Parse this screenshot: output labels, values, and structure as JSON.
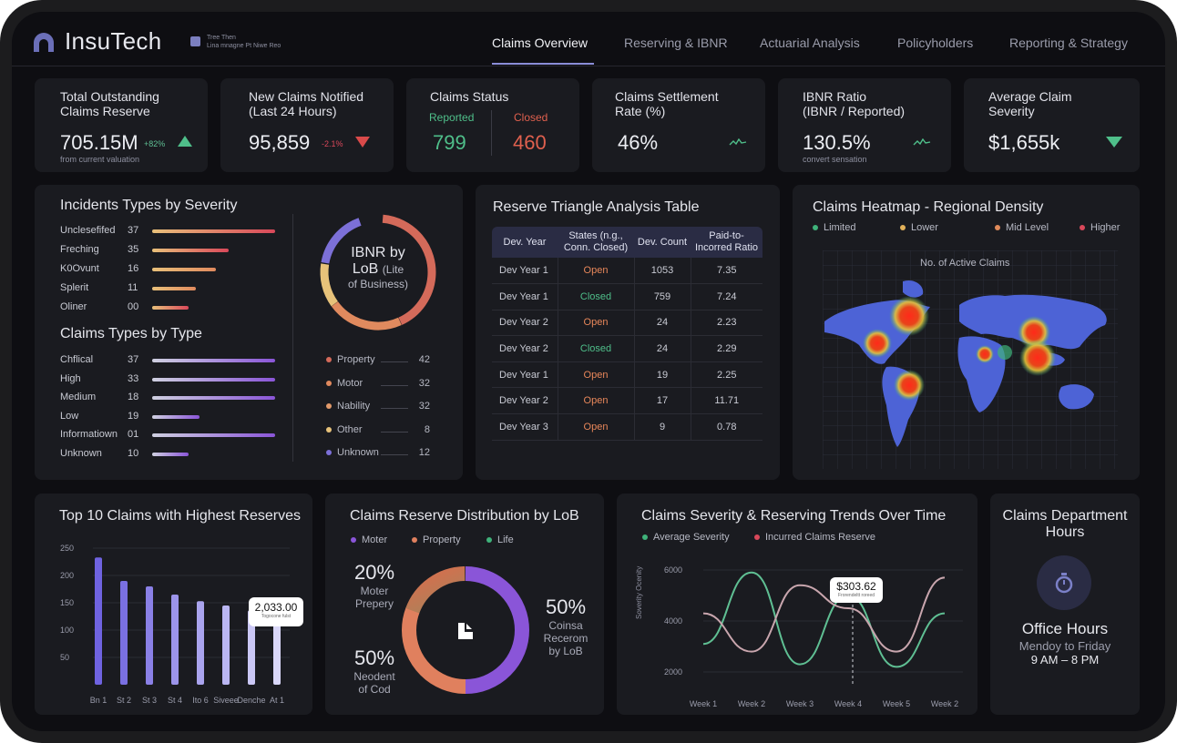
{
  "app": {
    "brand": "InsuTech",
    "mini_line1": "Tree Then",
    "mini_line2": "Lina mnagne Pt Niwe Reo"
  },
  "nav": [
    "Claims Overview",
    "Reserving & IBNR",
    "Actuarial Analysis",
    "Policyholders",
    "Reporting & Strategy"
  ],
  "kpis": {
    "outstanding": {
      "title_1": "Total Outstanding",
      "title_2": "Claims Reserve",
      "value": "705.15M",
      "delta": "+82%",
      "sub": "from current valuation"
    },
    "new_claims": {
      "title_1": "New Claims Notified",
      "title_2": "(Last 24 Hours)",
      "value": "95,859",
      "delta": "-2.1%"
    },
    "status": {
      "title": "Claims Status",
      "reported_label": "Reported",
      "reported_value": "799",
      "closed_label": "Closed",
      "closed_value": "460"
    },
    "settlement": {
      "title_1": "Claims Settlement",
      "title_2": "Rate (%)",
      "value": "46%"
    },
    "ibnr": {
      "title_1": "IBNR Ratio",
      "title_2": "(IBNR / Reported)",
      "value": "130.5%",
      "sub": "convert sensation"
    },
    "severity": {
      "title_1": "Average Claim",
      "title_2": "Severity",
      "value": "$1,655k"
    }
  },
  "incidents": {
    "title": "Incidents Types by Severity",
    "rows": [
      {
        "label": "Unclesefifed",
        "value": "37"
      },
      {
        "label": "Freching",
        "value": "35"
      },
      {
        "label": "K0Ovunt",
        "value": "16"
      },
      {
        "label": "Splerit",
        "value": "11"
      },
      {
        "label": "Oliner",
        "value": "00"
      }
    ]
  },
  "claim_types": {
    "title": "Claims Types by Type",
    "rows": [
      {
        "label": "Chflical",
        "value": "37"
      },
      {
        "label": "High",
        "value": "33"
      },
      {
        "label": "Medium",
        "value": "18"
      },
      {
        "label": "Low",
        "value": "19"
      },
      {
        "label": "Informatiown",
        "value": "01"
      },
      {
        "label": "Unknown",
        "value": "10"
      }
    ]
  },
  "ibnr_donut": {
    "line1": "IBNR by",
    "line2": "LoB",
    "line2b": "(Lite",
    "line3": "of Business)",
    "legend": [
      {
        "label": "Property",
        "value": "42",
        "color": "#d46a5a"
      },
      {
        "label": "Motor",
        "value": "32",
        "color": "#e0895e"
      },
      {
        "label": "Nability",
        "value": "32",
        "color": "#e29a6a"
      },
      {
        "label": "Other",
        "value": "8",
        "color": "#e7c27a"
      },
      {
        "label": "Unknown",
        "value": "12",
        "color": "#7c70d8"
      }
    ]
  },
  "triangle": {
    "title": "Reserve Triangle Analysis Table",
    "headers": [
      "Dev. Year",
      "States (n.g., Conn. Closed)",
      "Dev. Count",
      "Paid-to-Incorred Ratio"
    ],
    "rows": [
      [
        "Dev Year 1",
        "Open",
        "1053",
        "7.35"
      ],
      [
        "Dev Year 1",
        "Closed",
        "759",
        "7.24"
      ],
      [
        "Dev Year 2",
        "Open",
        "24",
        "2.23"
      ],
      [
        "Dev Year 2",
        "Closed",
        "24",
        "2.29"
      ],
      [
        "Dev Year 1",
        "Open",
        "19",
        "2.25"
      ],
      [
        "Dev Year 2",
        "Open",
        "17",
        "11.71"
      ],
      [
        "Dev Year 3",
        "Open",
        "9",
        "0.78"
      ]
    ]
  },
  "heatmap": {
    "title": "Claims Heatmap - Regional Density",
    "legend": [
      {
        "label": "Limited",
        "color": "#3fb27a"
      },
      {
        "label": "Lower",
        "color": "#e2b15a"
      },
      {
        "label": "Mid Level",
        "color": "#e08a5a"
      },
      {
        "label": "Higher",
        "color": "#d9485a"
      }
    ],
    "map_label": "No. of Active Claims"
  },
  "top10": {
    "title": "Top 10 Claims with Highest Reserves",
    "tooltip_value": "2,033.00",
    "tooltip_sub": "Togocone fulst"
  },
  "distribution": {
    "title": "Claims Reserve Distribution by LoB",
    "legend": [
      {
        "label": "Moter",
        "color": "#8a55d8"
      },
      {
        "label": "Property",
        "color": "#e0805e"
      },
      {
        "label": "Life",
        "color": "#3fb27a"
      }
    ],
    "left_top_pct": "20%",
    "left_top_l1": "Moter",
    "left_top_l2": "Prepery",
    "left_bot_pct": "50%",
    "left_bot_l1": "Neodent",
    "left_bot_l2": "of Cod",
    "right_pct": "50%",
    "right_l1": "Coinsa",
    "right_l2": "Recerom",
    "right_l3": "by LoB"
  },
  "trends": {
    "title": "Claims Severity & Reserving Trends Over Time",
    "legend": [
      {
        "label": "Average Severity",
        "color": "#3fb27a"
      },
      {
        "label": "Incurred Claims Reserve",
        "color": "#d9485a"
      }
    ],
    "ylabel": "Soverity Ocenity",
    "tooltip": "$303.62",
    "tooltip_sub": "Frorendeltt roreed"
  },
  "hours": {
    "title_1": "Claims Department",
    "title_2": "Hours",
    "heading": "Office Hours",
    "days": "Mendoy to Friday",
    "time": "9 AM – 8 PM"
  },
  "chart_data": [
    {
      "type": "bar",
      "title": "Top 10 Claims with Highest Reserves",
      "categories": [
        "Bn 1",
        "St 2",
        "St 3",
        "St 4",
        "Ito 6",
        "Siveee",
        "Denche",
        "At 1"
      ],
      "values": [
        233,
        190,
        180,
        165,
        153,
        145,
        136,
        130
      ],
      "ylim": [
        0,
        250
      ],
      "yticks": [
        50,
        100,
        150,
        200,
        250
      ],
      "colors": [
        "#6f63e0",
        "#7a70e2",
        "#8a80e6",
        "#9c94ea",
        "#aaa4ee",
        "#bab6f2",
        "#cac7f5",
        "#d9d7f8"
      ]
    },
    {
      "type": "line",
      "title": "Claims Severity & Reserving Trends Over Time",
      "x": [
        "Week 1",
        "Week 2",
        "Week 3",
        "Week 4",
        "Week 5",
        "Week 2"
      ],
      "ylim": [
        1500,
        6500
      ],
      "yticks": [
        2000,
        4000,
        6000
      ],
      "series": [
        {
          "name": "Average Severity",
          "color": "#5fbf93",
          "values": [
            3100,
            5900,
            2300,
            5000,
            2200,
            4300
          ]
        },
        {
          "name": "Incurred Claims Reserve",
          "color": "#c9a6ae",
          "values": [
            4300,
            2800,
            5400,
            4500,
            2800,
            5700
          ]
        }
      ]
    }
  ]
}
